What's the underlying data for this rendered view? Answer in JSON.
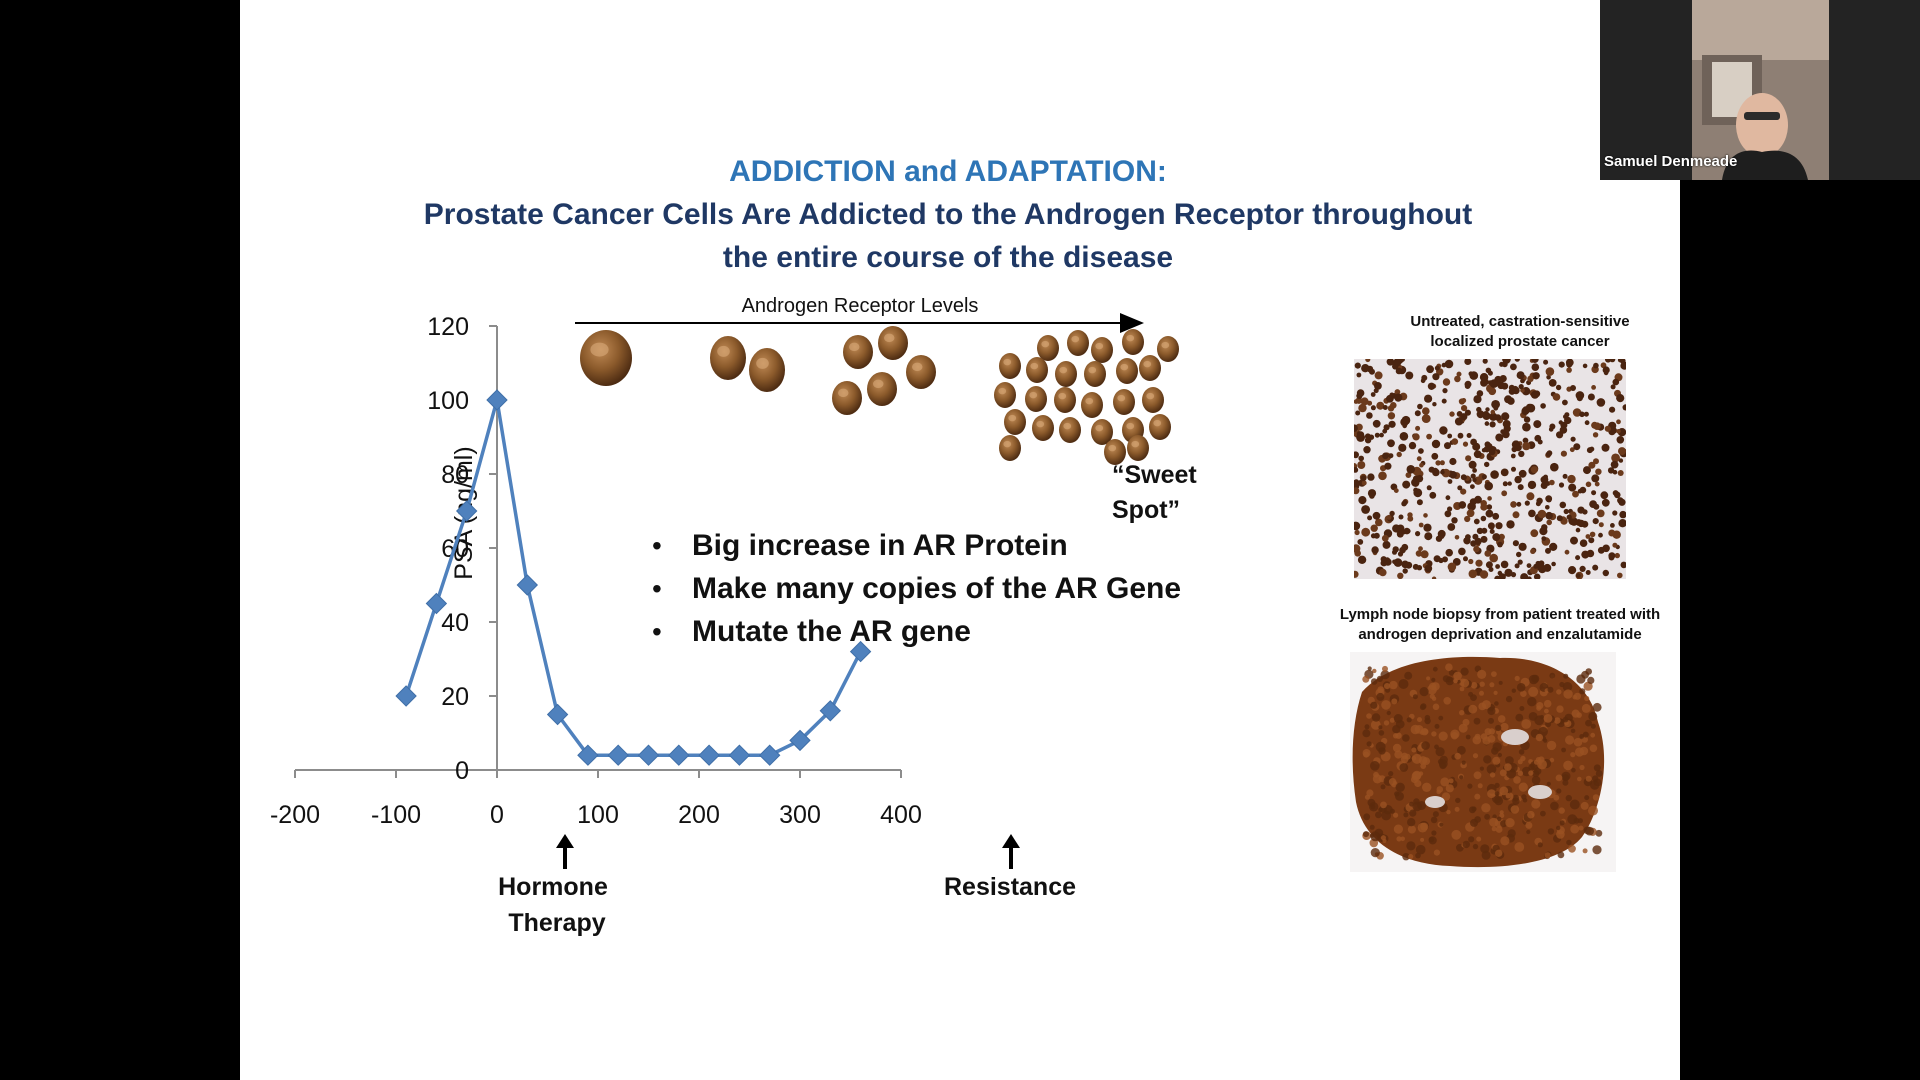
{
  "slide": {
    "title_line1": "ADDICTION and ADAPTATION:",
    "title_line2a": "Prostate Cancer Cells Are Addicted to the Androgen Receptor throughout",
    "title_line2b": "the entire course of the disease",
    "ar_levels_label": "Androgen Receptor  Levels",
    "sweet_spot_line1": "“Sweet",
    "sweet_spot_line2": "Spot”",
    "bullets": [
      "Big increase in AR Protein",
      "Make many copies of the AR Gene",
      "Mutate the AR gene"
    ],
    "marker_left_line1": "Hormone",
    "marker_left_line2": "Therapy",
    "marker_right": "Resistance",
    "caption_top_line1": "Untreated, castration-sensitive",
    "caption_top_line2": "localized prostate cancer",
    "caption_bottom_line1": "Lymph node biopsy from patient treated with",
    "caption_bottom_line2": "androgen deprivation and enzalutamide"
  },
  "chart_data": {
    "type": "scatter",
    "ylabel": "PSA (ng/ml)",
    "xlim": [
      -200,
      400
    ],
    "ylim": [
      0,
      120
    ],
    "x_ticks": [
      -200,
      -100,
      0,
      100,
      200,
      300,
      400
    ],
    "y_ticks": [
      0,
      20,
      40,
      60,
      80,
      100,
      120
    ],
    "series": [
      {
        "color": "#4f81bd",
        "marker": "diamond",
        "x": [
          -90,
          -60,
          -30,
          0,
          30,
          60,
          90,
          120,
          150,
          180,
          210,
          240,
          270,
          300,
          330,
          360
        ],
        "y": [
          20,
          45,
          70,
          100,
          50,
          15,
          4,
          4,
          4,
          4,
          4,
          4,
          4,
          8,
          16,
          32
        ]
      }
    ]
  },
  "video": {
    "participant_name": "Samuel Denmeade"
  }
}
